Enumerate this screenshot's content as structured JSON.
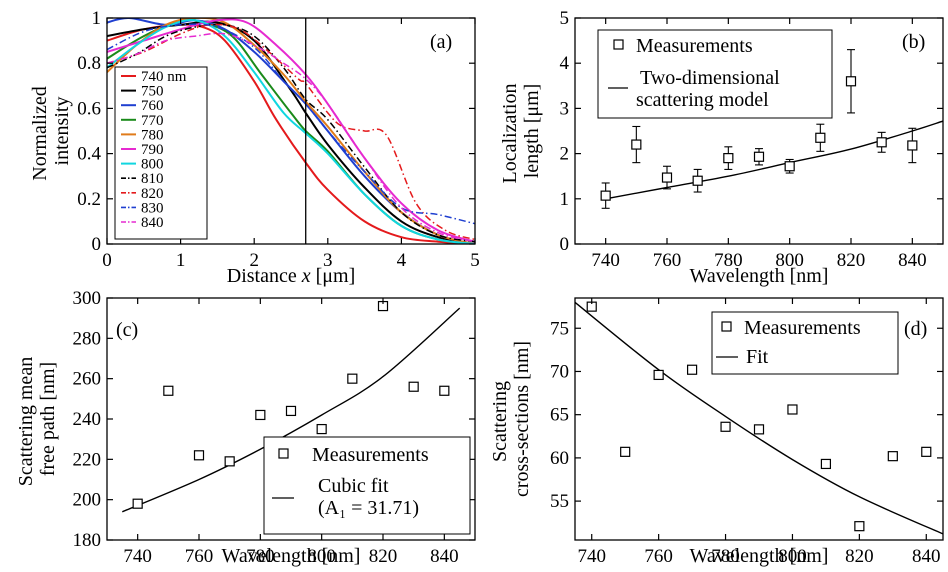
{
  "chart_data": [
    {
      "panel_label": "(a)",
      "type": "line",
      "xlabel_pre": "Distance ",
      "xlabel_var": "x",
      "xlabel_post": " [μm]",
      "ylabel_lines": [
        "Normalized",
        "intensity"
      ],
      "xlim": [
        0,
        5
      ],
      "ylim": [
        0,
        1
      ],
      "xticks": [
        "0",
        "1",
        "2",
        "3",
        "4",
        "5"
      ],
      "yticks": [
        "0",
        "0.2",
        "0.4",
        "0.6",
        "0.8",
        "1"
      ],
      "vline_x": 2.7,
      "legend_position": "left",
      "series": [
        {
          "name": "740 nm",
          "color": "#e41a1c",
          "dash": "solid",
          "x": [
            0,
            0.5,
            1,
            1.3,
            1.6,
            2,
            2.3,
            2.7,
            3,
            3.5,
            4,
            4.5,
            5
          ],
          "y": [
            0.9,
            0.95,
            0.97,
            0.96,
            0.9,
            0.72,
            0.55,
            0.36,
            0.24,
            0.1,
            0.03,
            0.01,
            0
          ]
        },
        {
          "name": "750",
          "color": "#000000",
          "dash": "solid",
          "x": [
            0,
            0.5,
            1,
            1.5,
            2,
            2.5,
            2.7,
            3,
            3.5,
            4,
            4.5,
            5
          ],
          "y": [
            0.92,
            0.95,
            0.97,
            0.98,
            0.9,
            0.68,
            0.58,
            0.44,
            0.25,
            0.1,
            0.03,
            0
          ]
        },
        {
          "name": "760",
          "color": "#1f3fd0",
          "dash": "solid",
          "x": [
            0,
            0.3,
            0.8,
            1.2,
            1.6,
            2,
            2.4,
            2.7,
            3,
            3.5,
            4,
            4.5,
            5
          ],
          "y": [
            0.98,
            1.0,
            0.97,
            0.99,
            0.95,
            0.85,
            0.72,
            0.62,
            0.5,
            0.3,
            0.14,
            0.04,
            0
          ]
        },
        {
          "name": "770",
          "color": "#1a8a1a",
          "dash": "solid",
          "x": [
            0,
            0.5,
            1,
            1.3,
            1.7,
            2.1,
            2.5,
            2.7,
            3,
            3.5,
            4,
            4.5,
            5
          ],
          "y": [
            0.82,
            0.92,
            0.99,
            0.98,
            0.92,
            0.75,
            0.58,
            0.5,
            0.41,
            0.22,
            0.08,
            0.02,
            0
          ]
        },
        {
          "name": "780",
          "color": "#e07b1a",
          "dash": "solid",
          "x": [
            0,
            0.4,
            0.8,
            1.2,
            1.6,
            2,
            2.4,
            2.7,
            3,
            3.5,
            4,
            4.5,
            5
          ],
          "y": [
            0.76,
            0.88,
            0.97,
            1.0,
            0.98,
            0.88,
            0.75,
            0.63,
            0.52,
            0.32,
            0.14,
            0.04,
            0
          ]
        },
        {
          "name": "790",
          "color": "#e62ad0",
          "dash": "solid",
          "x": [
            0,
            0.5,
            1,
            1.5,
            1.9,
            2.3,
            2.7,
            3,
            3.5,
            4,
            4.5,
            5
          ],
          "y": [
            0.85,
            0.9,
            0.95,
            0.99,
            0.98,
            0.88,
            0.75,
            0.62,
            0.38,
            0.18,
            0.06,
            0.01
          ]
        },
        {
          "name": "800",
          "color": "#11d6e0",
          "dash": "solid",
          "x": [
            0,
            0.4,
            0.8,
            1.2,
            1.6,
            2,
            2.4,
            2.7,
            3,
            3.5,
            4,
            4.5,
            5
          ],
          "y": [
            0.78,
            0.88,
            0.96,
            0.99,
            0.92,
            0.76,
            0.58,
            0.49,
            0.4,
            0.22,
            0.08,
            0.02,
            0
          ]
        },
        {
          "name": "810",
          "color": "#000000",
          "dash": "dashdot",
          "x": [
            0,
            0.4,
            0.8,
            1.2,
            1.6,
            2,
            2.4,
            2.7,
            3,
            3.5,
            4,
            4.5,
            5
          ],
          "y": [
            0.78,
            0.84,
            0.92,
            0.96,
            0.97,
            0.92,
            0.78,
            0.64,
            0.55,
            0.34,
            0.14,
            0.04,
            0.01
          ]
        },
        {
          "name": "820",
          "color": "#e41a1c",
          "dash": "dashdot",
          "x": [
            0,
            0.5,
            1,
            1.4,
            1.8,
            2.2,
            2.6,
            2.7,
            3,
            3.2,
            3.5,
            3.8,
            4.2,
            4.6,
            5
          ],
          "y": [
            0.8,
            0.85,
            0.93,
            0.97,
            0.95,
            0.85,
            0.73,
            0.71,
            0.58,
            0.52,
            0.5,
            0.48,
            0.18,
            0.06,
            0.02
          ]
        },
        {
          "name": "830",
          "color": "#1f3fd0",
          "dash": "dashdot",
          "x": [
            0,
            0.5,
            1,
            1.5,
            2,
            2.4,
            2.7,
            3,
            3.5,
            4,
            4.5,
            5
          ],
          "y": [
            0.86,
            0.94,
            0.97,
            0.96,
            0.87,
            0.72,
            0.62,
            0.5,
            0.32,
            0.16,
            0.13,
            0.09
          ]
        },
        {
          "name": "840",
          "color": "#e62ad0",
          "dash": "dashdot",
          "x": [
            0,
            0.4,
            0.8,
            1.2,
            1.6,
            2,
            2.4,
            2.7,
            3,
            3.5,
            4,
            4.5,
            5
          ],
          "y": [
            0.8,
            0.84,
            0.9,
            0.92,
            0.93,
            0.88,
            0.8,
            0.73,
            0.62,
            0.38,
            0.16,
            0.05,
            0.01
          ]
        }
      ]
    },
    {
      "panel_label": "(b)",
      "type": "scatter",
      "xlabel": "Wavelength [nm]",
      "ylabel_lines": [
        "Localization",
        "length [μm]"
      ],
      "xlim": [
        730,
        850
      ],
      "ylim": [
        0,
        5
      ],
      "xticks": [
        "740",
        "760",
        "780",
        "800",
        "820",
        "840"
      ],
      "yticks": [
        "0",
        "1",
        "2",
        "3",
        "4",
        "5"
      ],
      "legend_position": "top-left",
      "legend_entries": {
        "markers": "Measurements",
        "line": [
          "Two-dimensional",
          "scattering model"
        ]
      },
      "points": [
        {
          "x": 740,
          "y": 1.07,
          "err": 0.28
        },
        {
          "x": 750,
          "y": 2.2,
          "err": 0.4
        },
        {
          "x": 760,
          "y": 1.47,
          "err": 0.25
        },
        {
          "x": 770,
          "y": 1.4,
          "err": 0.25
        },
        {
          "x": 780,
          "y": 1.9,
          "err": 0.25
        },
        {
          "x": 790,
          "y": 1.93,
          "err": 0.18
        },
        {
          "x": 800,
          "y": 1.72,
          "err": 0.15
        },
        {
          "x": 810,
          "y": 2.35,
          "err": 0.3
        },
        {
          "x": 820,
          "y": 3.6,
          "err": 0.7
        },
        {
          "x": 830,
          "y": 2.25,
          "err": 0.22
        },
        {
          "x": 840,
          "y": 2.18,
          "err": 0.38
        }
      ],
      "fit": {
        "x": [
          740,
          760,
          780,
          800,
          820,
          840,
          850
        ],
        "y": [
          1.0,
          1.25,
          1.5,
          1.8,
          2.1,
          2.5,
          2.72
        ]
      }
    },
    {
      "panel_label": "(c)",
      "type": "scatter",
      "xlabel": "Wavelength [nm]",
      "ylabel_lines": [
        "Scattering mean",
        "free path [nm]"
      ],
      "xlim": [
        730,
        850
      ],
      "ylim": [
        180,
        300
      ],
      "xticks": [
        "740",
        "760",
        "780",
        "800",
        "820",
        "840"
      ],
      "yticks": [
        "180",
        "200",
        "220",
        "240",
        "260",
        "280",
        "300"
      ],
      "legend_position": "bottom-right",
      "legend_entries": {
        "markers": "Measurements",
        "line": [
          "Cubic fit",
          "(A₁ = 31.71)"
        ]
      },
      "points": [
        {
          "x": 740,
          "y": 198
        },
        {
          "x": 750,
          "y": 254
        },
        {
          "x": 760,
          "y": 222
        },
        {
          "x": 770,
          "y": 219
        },
        {
          "x": 780,
          "y": 242
        },
        {
          "x": 790,
          "y": 244
        },
        {
          "x": 800,
          "y": 235
        },
        {
          "x": 810,
          "y": 260
        },
        {
          "x": 820,
          "y": 296
        },
        {
          "x": 830,
          "y": 256
        },
        {
          "x": 840,
          "y": 254
        }
      ],
      "fit": {
        "x": [
          735,
          760,
          780,
          800,
          820,
          845
        ],
        "y": [
          194,
          210,
          225,
          242,
          261,
          295
        ]
      }
    },
    {
      "panel_label": "(d)",
      "type": "scatter",
      "xlabel": "Wavelength [nm]",
      "ylabel_lines": [
        "Scattering",
        "cross-sections [nm]"
      ],
      "xlim": [
        735,
        845
      ],
      "ylim": [
        50.5,
        78.5
      ],
      "xticks": [
        "740",
        "760",
        "780",
        "800",
        "820",
        "840"
      ],
      "yticks": [
        "55",
        "60",
        "65",
        "70",
        "75"
      ],
      "legend_position": "top-right",
      "legend_entries": {
        "markers": "Measurements",
        "line": [
          "Fit"
        ]
      },
      "points": [
        {
          "x": 740,
          "y": 77.5
        },
        {
          "x": 750,
          "y": 60.7
        },
        {
          "x": 760,
          "y": 69.6
        },
        {
          "x": 770,
          "y": 70.2
        },
        {
          "x": 780,
          "y": 63.6
        },
        {
          "x": 790,
          "y": 63.3
        },
        {
          "x": 800,
          "y": 65.6
        },
        {
          "x": 810,
          "y": 59.3
        },
        {
          "x": 820,
          "y": 52.1
        },
        {
          "x": 830,
          "y": 60.2
        },
        {
          "x": 840,
          "y": 60.7
        }
      ],
      "fit": {
        "x": [
          735,
          760,
          780,
          800,
          820,
          845
        ],
        "y": [
          78.0,
          70.2,
          64.8,
          59.8,
          55.5,
          51.2
        ]
      }
    }
  ]
}
